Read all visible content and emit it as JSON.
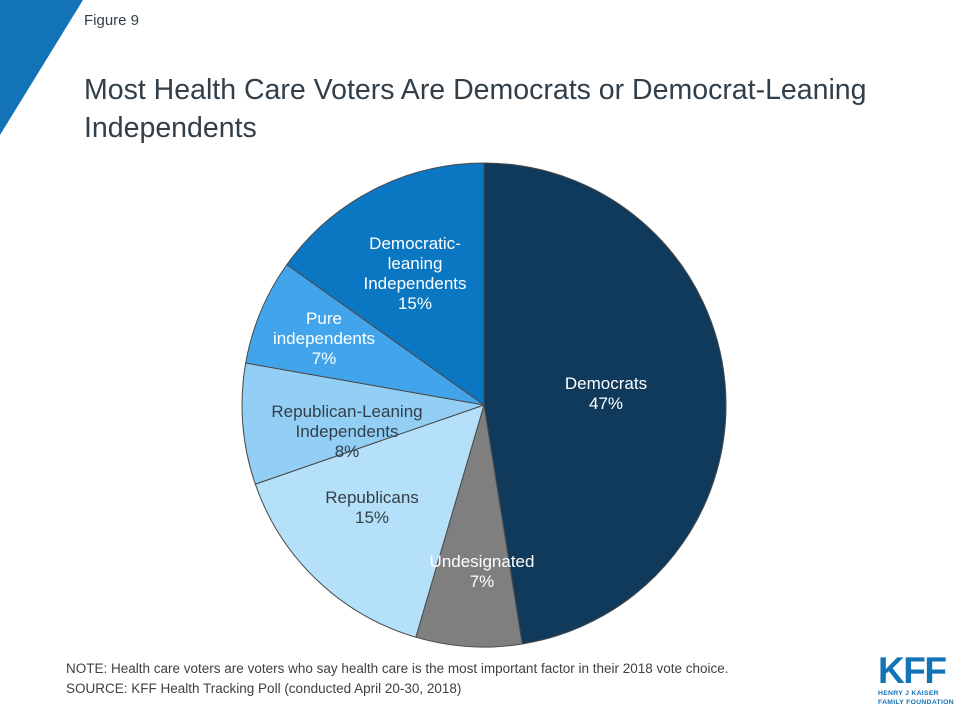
{
  "header": {
    "figure_label": "Figure 9",
    "title": "Most Health Care Voters Are Democrats or Democrat-Leaning Independents"
  },
  "chart_data": {
    "type": "pie",
    "title": "Most Health Care Voters Are Democrats or Democrat-Leaning Independents",
    "units": "percent",
    "start_angle_deg": 0,
    "direction": "clockwise",
    "legend_position": "none",
    "slice_border_color": "#4A4A4A",
    "slices": [
      {
        "label": "Democrats",
        "value": 47,
        "color": "#103A5C",
        "label_text": "Democrats\n47%",
        "label_color": "#FFFFFF"
      },
      {
        "label": "Undesignated",
        "value": 7,
        "color": "#7F7F7F",
        "label_text": "Undesignated\n7%",
        "label_color": "#FFFFFF"
      },
      {
        "label": "Republicans",
        "value": 15,
        "color": "#B5E0FA",
        "label_text": "Republicans\n15%",
        "label_color": "#333F48"
      },
      {
        "label": "Republican-Leaning Independents",
        "value": 8,
        "color": "#93CFF4",
        "label_text": "Republican-Leaning\nIndependents\n8%",
        "label_color": "#333F48"
      },
      {
        "label": "Pure independents",
        "value": 7,
        "color": "#42A5EC",
        "label_text": "Pure\nindependents\n7%",
        "label_color": "#FFFFFF"
      },
      {
        "label": "Democratic-leaning Independents",
        "value": 15,
        "color": "#0B77C2",
        "label_text": "Democratic-\nleaning\nIndependents\n15%",
        "label_color": "#FFFFFF"
      }
    ]
  },
  "footer": {
    "note": "NOTE: Health care voters are voters who say health care is the most important factor in their 2018 vote choice.",
    "source": "SOURCE: KFF Health Tracking Poll (conducted April 20-30, 2018)",
    "logo": {
      "text": "KFF",
      "subtext_line1": "HENRY J KAISER",
      "subtext_line2": "FAMILY FOUNDATION"
    }
  },
  "colors": {
    "brand_blue": "#1273B7",
    "title_text": "#333F48",
    "footer_text": "#404040",
    "background": "#FFFFFF"
  }
}
